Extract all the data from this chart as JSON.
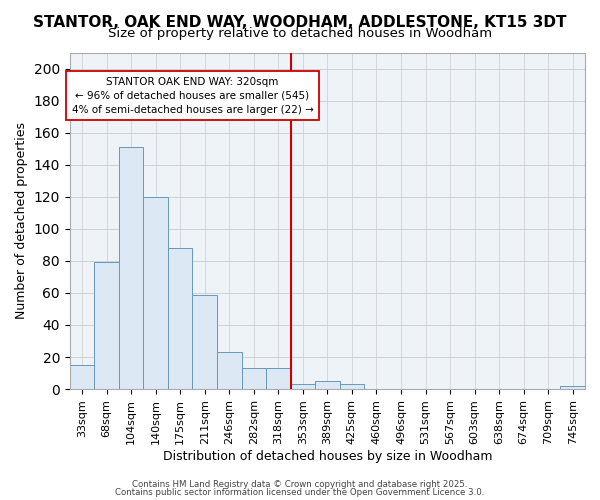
{
  "title": "STANTOR, OAK END WAY, WOODHAM, ADDLESTONE, KT15 3DT",
  "subtitle": "Size of property relative to detached houses in Woodham",
  "xlabel": "Distribution of detached houses by size in Woodham",
  "ylabel": "Number of detached properties",
  "categories": [
    "33sqm",
    "68sqm",
    "104sqm",
    "140sqm",
    "175sqm",
    "211sqm",
    "246sqm",
    "282sqm",
    "318sqm",
    "353sqm",
    "389sqm",
    "425sqm",
    "460sqm",
    "496sqm",
    "531sqm",
    "567sqm",
    "603sqm",
    "638sqm",
    "674sqm",
    "709sqm",
    "745sqm"
  ],
  "values": [
    15,
    79,
    151,
    120,
    88,
    59,
    23,
    13,
    13,
    3,
    5,
    3,
    0,
    0,
    0,
    0,
    0,
    0,
    0,
    0,
    2
  ],
  "bar_color": "#dce8f4",
  "bar_edge_color": "#6699bb",
  "highlight_index": 8,
  "highlight_color": "#cc0000",
  "annotation_line1": "STANTOR OAK END WAY: 320sqm",
  "annotation_line2": "← 96% of detached houses are smaller (545)",
  "annotation_line3": "4% of semi-detached houses are larger (22) →",
  "annotation_box_facecolor": "#ffffff",
  "annotation_box_edge": "#cc0000",
  "ylim": [
    0,
    210
  ],
  "yticks": [
    0,
    20,
    40,
    60,
    80,
    100,
    120,
    140,
    160,
    180,
    200
  ],
  "footer_line1": "Contains HM Land Registry data © Crown copyright and database right 2025.",
  "footer_line2": "Contains public sector information licensed under the Open Government Licence 3.0.",
  "background_color": "#ffffff",
  "plot_bg_color": "#eef3f8",
  "grid_color": "#cccccc",
  "title_fontsize": 11,
  "subtitle_fontsize": 9.5,
  "axis_label_fontsize": 9,
  "tick_fontsize": 8
}
